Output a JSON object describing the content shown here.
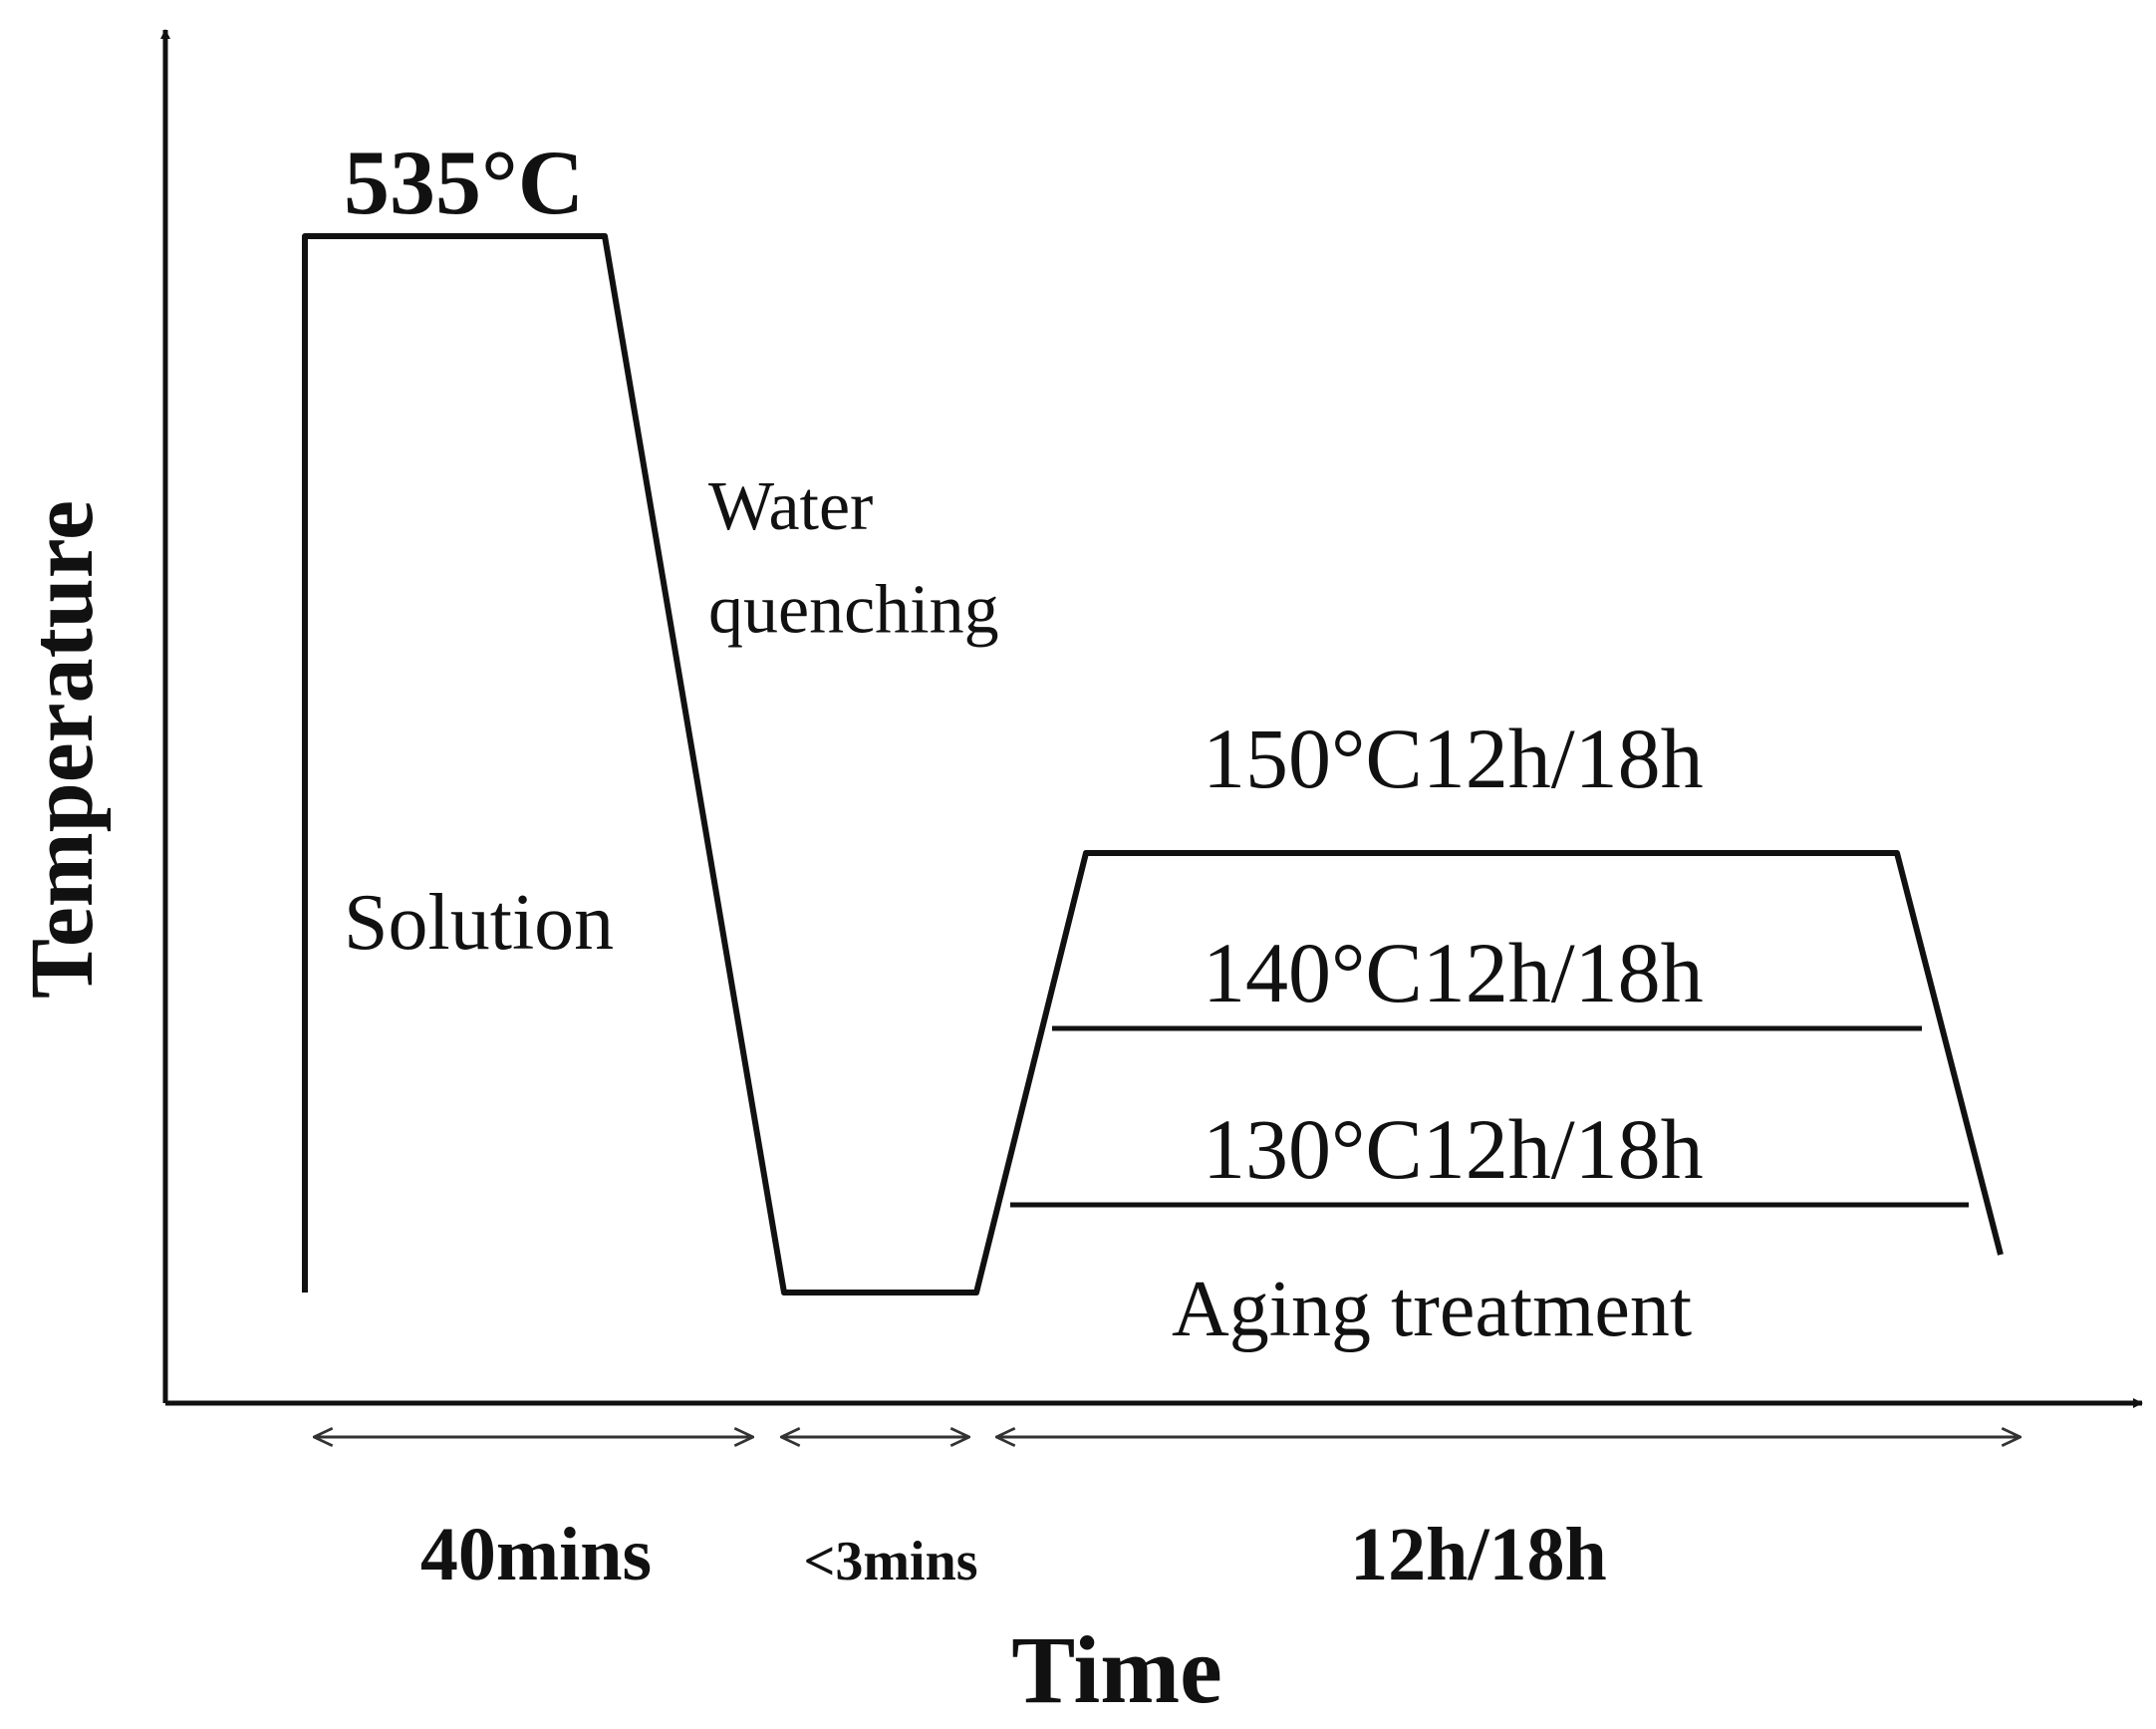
{
  "axes": {
    "y_label": "Temperature",
    "x_label": "Time"
  },
  "stages": [
    {
      "label": "Solution",
      "temperature": "535°C",
      "duration": "40mins"
    },
    {
      "label": "Water\nquenching",
      "duration": "<3mins"
    },
    {
      "label": "Aging treatment",
      "duration": "12h/18h",
      "conditions": [
        "150°C12h/18h",
        "140°C12h/18h",
        "130°C12h/18h"
      ]
    }
  ]
}
